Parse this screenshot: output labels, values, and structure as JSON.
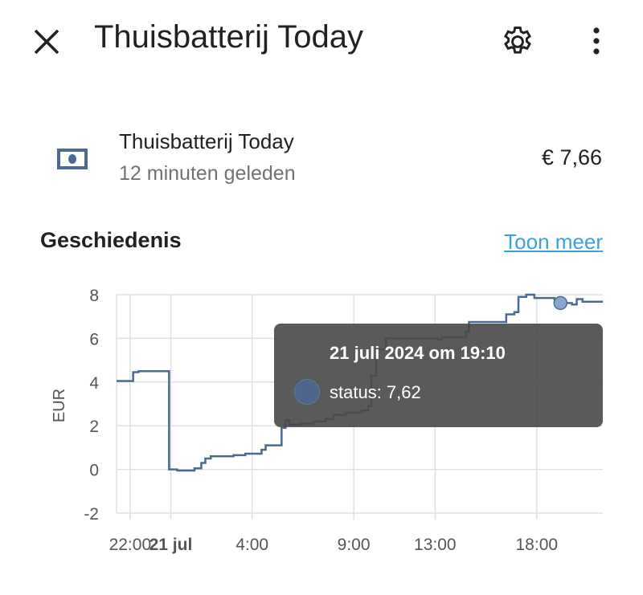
{
  "header": {
    "title": "Thuisbatterij Today",
    "close_icon": "close-icon",
    "settings_icon": "gear-icon",
    "menu_icon": "more-vertical-icon"
  },
  "entity": {
    "icon": "cash-icon",
    "name": "Thuisbatterij Today",
    "last_changed": "12 minuten geleden",
    "value": "€ 7,66"
  },
  "history": {
    "title": "Geschiedenis",
    "show_more": "Toon meer"
  },
  "tooltip": {
    "title": "21 juli 2024 om 19:10",
    "line": "status: 7,62"
  },
  "colors": {
    "line": "#4a6a93",
    "grid": "#e0e0e0",
    "link": "#3ba0dc",
    "tooltip_bg": "#484848"
  },
  "chart_data": {
    "type": "line",
    "step": true,
    "ylabel": "EUR",
    "ylim": [
      -2,
      8
    ],
    "yticks": [
      "8",
      "6",
      "4",
      "2",
      "0",
      "-2"
    ],
    "xlim": [
      "2024-07-20 21:20",
      "2024-07-21 21:15"
    ],
    "xticks": [
      {
        "label": "22:00",
        "t": "2024-07-20 22:00",
        "bold": false
      },
      {
        "label": "21 jul",
        "t": "2024-07-21 00:00",
        "bold": true
      },
      {
        "label": "4:00",
        "t": "2024-07-21 04:00",
        "bold": false
      },
      {
        "label": "9:00",
        "t": "2024-07-21 09:00",
        "bold": false
      },
      {
        "label": "13:00",
        "t": "2024-07-21 13:00",
        "bold": false
      },
      {
        "label": "18:00",
        "t": "2024-07-21 18:00",
        "bold": false
      }
    ],
    "grid": true,
    "highlight": {
      "t": "2024-07-21 19:10",
      "y": 7.62
    },
    "series": [
      {
        "name": "status",
        "points": [
          [
            "2024-07-20 21:20",
            4.05
          ],
          [
            "2024-07-20 22:09",
            4.45
          ],
          [
            "2024-07-20 22:25",
            4.5
          ],
          [
            "2024-07-20 23:55",
            0.0
          ],
          [
            "2024-07-21 00:19",
            -0.05
          ],
          [
            "2024-07-21 01:10",
            0.05
          ],
          [
            "2024-07-21 01:30",
            0.3
          ],
          [
            "2024-07-21 01:42",
            0.5
          ],
          [
            "2024-07-21 01:58",
            0.6
          ],
          [
            "2024-07-21 03:05",
            0.65
          ],
          [
            "2024-07-21 03:40",
            0.72
          ],
          [
            "2024-07-21 04:28",
            0.9
          ],
          [
            "2024-07-21 04:40",
            1.1
          ],
          [
            "2024-07-21 05:27",
            1.9
          ],
          [
            "2024-07-21 05:39",
            2.25
          ],
          [
            "2024-07-21 05:50",
            2.05
          ],
          [
            "2024-07-21 06:26",
            2.1
          ],
          [
            "2024-07-21 07:02",
            2.2
          ],
          [
            "2024-07-21 07:37",
            2.3
          ],
          [
            "2024-07-21 08:00",
            2.5
          ],
          [
            "2024-07-21 08:36",
            2.6
          ],
          [
            "2024-07-21 09:24",
            2.7
          ],
          [
            "2024-07-21 09:43",
            2.9
          ],
          [
            "2024-07-21 09:52",
            4.3
          ],
          [
            "2024-07-21 10:06",
            5.5
          ],
          [
            "2024-07-21 10:35",
            6.0
          ],
          [
            "2024-07-21 13:09",
            5.95
          ],
          [
            "2024-07-21 13:20",
            6.05
          ],
          [
            "2024-07-21 14:31",
            6.3
          ],
          [
            "2024-07-21 14:40",
            6.75
          ],
          [
            "2024-07-21 16:30",
            7.1
          ],
          [
            "2024-07-21 16:54",
            7.2
          ],
          [
            "2024-07-21 17:06",
            7.9
          ],
          [
            "2024-07-21 17:29",
            8.0
          ],
          [
            "2024-07-21 17:53",
            7.85
          ],
          [
            "2024-07-21 18:52",
            7.8
          ],
          [
            "2024-07-21 19:10",
            7.62
          ],
          [
            "2024-07-21 19:44",
            7.55
          ],
          [
            "2024-07-21 19:58",
            7.8
          ],
          [
            "2024-07-21 20:15",
            7.68
          ],
          [
            "2024-07-21 21:15",
            7.68
          ]
        ]
      }
    ]
  }
}
